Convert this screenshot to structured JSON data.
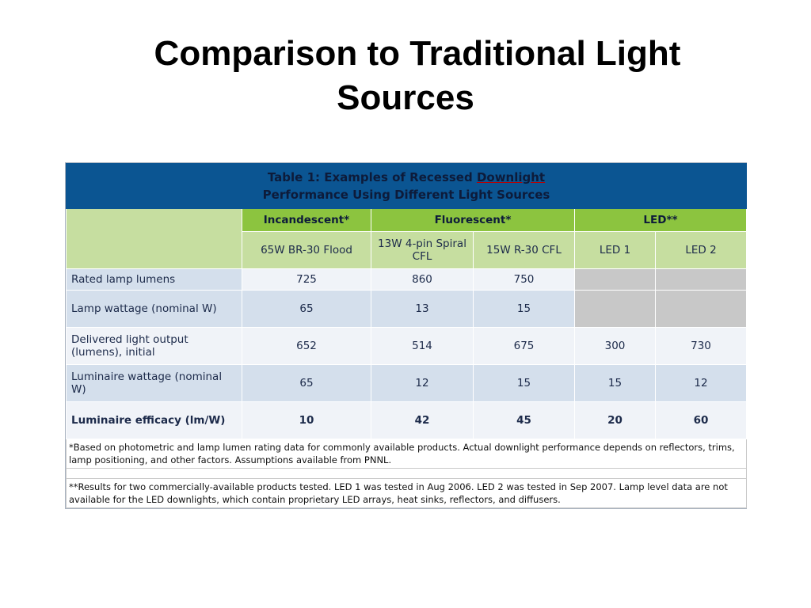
{
  "slide": {
    "title_line1": "Comparison to Traditional Light",
    "title_line2": "Sources"
  },
  "table": {
    "caption_line1_pre": "Table 1: Examples of Recessed ",
    "caption_line1_word": "Downlight",
    "caption_line2": "Performance Using Different Light Sources",
    "groups": [
      "Incandescent*",
      "Fluorescent*",
      "LED**"
    ],
    "subheaders": [
      "65W BR-30 Flood",
      "13W 4-pin Spiral CFL",
      "15W R-30 CFL",
      "LED 1",
      "LED 2"
    ],
    "rows": [
      {
        "label": "Rated lamp lumens",
        "values": [
          "725",
          "860",
          "750",
          "",
          ""
        ]
      },
      {
        "label": "Lamp wattage (nominal W)",
        "values": [
          "65",
          "13",
          "15",
          "",
          ""
        ]
      },
      {
        "label": "Delivered light output (lumens), initial",
        "values": [
          "652",
          "514",
          "675",
          "300",
          "730"
        ]
      },
      {
        "label": "Luminaire wattage (nominal W)",
        "values": [
          "65",
          "12",
          "15",
          "15",
          "12"
        ]
      },
      {
        "label": "Luminaire efficacy (lm/W)",
        "values": [
          "10",
          "42",
          "45",
          "20",
          "60"
        ]
      }
    ],
    "footnote1": "*Based on photometric and lamp lumen rating data for commonly available products. Actual downlight performance depends on reflectors, trims, lamp positioning, and other factors. Assumptions available from PNNL.",
    "footnote2": "**Results for two commercially-available products tested.  LED 1 was tested in Aug 2006.  LED 2 was tested in Sep 2007.  Lamp level data are not available for the LED downlights, which contain proprietary LED arrays, heat sinks, reflectors, and diffusers."
  }
}
